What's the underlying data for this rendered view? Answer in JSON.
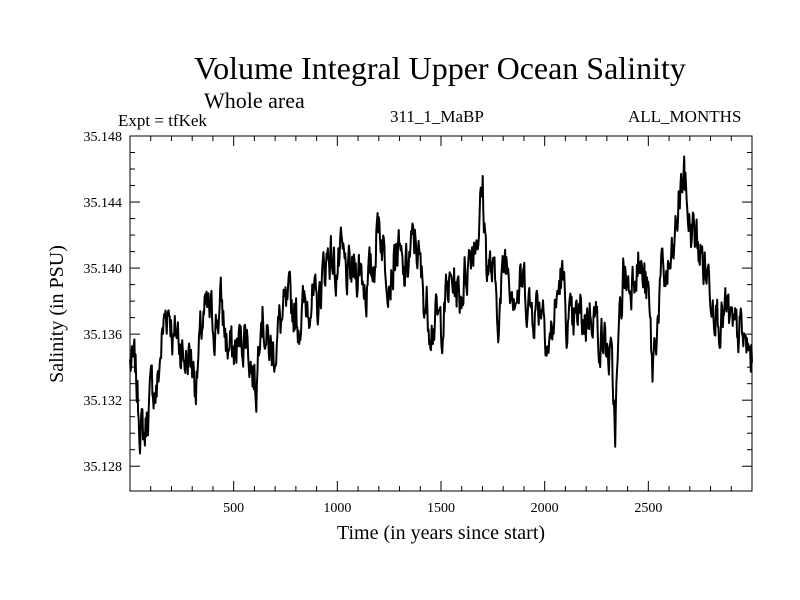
{
  "chart_data": {
    "type": "line",
    "title": "Volume Integral Upper Ocean Salinity",
    "subtitle": "Whole area",
    "annotations": {
      "experiment": "Expt = tfKek",
      "run": "311_1_MaBP",
      "months": "ALL_MONTHS"
    },
    "xlabel": "Time (in years since start)",
    "ylabel": "Salinity (in PSU)",
    "xlim": [
      0,
      3000
    ],
    "ylim": [
      35.1265,
      35.148
    ],
    "xticks": [
      500,
      1000,
      1500,
      2000,
      2500
    ],
    "yticks": [
      35.128,
      35.132,
      35.136,
      35.14,
      35.144,
      35.148
    ],
    "ytick_labels": [
      "35.128",
      "35.132",
      "35.136",
      "35.140",
      "35.144",
      "35.148"
    ],
    "grid": false,
    "line_color": "#000000",
    "series": [
      {
        "x": [
          0,
          25,
          50,
          70,
          90,
          110,
          130,
          150,
          170,
          190,
          210,
          230,
          260,
          290,
          320,
          350,
          380,
          410,
          440,
          470,
          500,
          530,
          560,
          590,
          610,
          630,
          660,
          690,
          720,
          750,
          780,
          810,
          840,
          870,
          900,
          930,
          960,
          990,
          1020,
          1050,
          1080,
          1110,
          1140,
          1170,
          1200,
          1230,
          1260,
          1290,
          1320,
          1350,
          1380,
          1410,
          1440,
          1470,
          1500,
          1530,
          1560,
          1590,
          1620,
          1650,
          1680,
          1700,
          1720,
          1750,
          1780,
          1810,
          1840,
          1870,
          1900,
          1930,
          1960,
          1990,
          2020,
          2050,
          2080,
          2110,
          2140,
          2170,
          2200,
          2230,
          2260,
          2290,
          2320,
          2340,
          2360,
          2380,
          2410,
          2440,
          2470,
          2500,
          2520,
          2540,
          2560,
          2590,
          2620,
          2650,
          2670,
          2700,
          2730,
          2760,
          2790,
          2820,
          2850,
          2880,
          2910,
          2940,
          2970,
          3000
        ],
        "y": [
          35.1342,
          35.1338,
          35.1305,
          35.1298,
          35.1318,
          35.1328,
          35.1325,
          35.1352,
          35.1372,
          35.1378,
          35.1355,
          35.1362,
          35.1345,
          35.1348,
          35.1332,
          35.1368,
          35.1372,
          35.1365,
          35.1378,
          35.1352,
          35.1348,
          35.1355,
          35.1362,
          35.1338,
          35.1328,
          35.1382,
          35.1355,
          35.1348,
          35.1365,
          35.1372,
          35.1378,
          35.1368,
          35.1375,
          35.1385,
          35.1372,
          35.1395,
          35.1412,
          35.1398,
          35.1405,
          35.1392,
          35.1398,
          35.1402,
          35.1388,
          35.1398,
          35.1432,
          35.1405,
          35.1398,
          35.1412,
          35.1392,
          35.1408,
          35.1418,
          35.1388,
          35.1372,
          35.1368,
          35.1365,
          35.1385,
          35.1392,
          35.1382,
          35.1398,
          35.1415,
          35.1425,
          35.1448,
          35.1405,
          35.1395,
          35.1372,
          35.1408,
          35.1395,
          35.1385,
          35.1392,
          35.1375,
          35.1378,
          35.1382,
          35.1352,
          35.1372,
          35.1398,
          35.1365,
          35.1362,
          35.1372,
          35.1368,
          35.1378,
          35.1362,
          35.1355,
          35.1342,
          35.1305,
          35.1362,
          35.1398,
          35.1388,
          35.1408,
          35.1395,
          35.1382,
          35.1338,
          35.1365,
          35.1392,
          35.1395,
          35.1405,
          35.1442,
          35.1458,
          35.1425,
          35.1418,
          35.1405,
          35.1395,
          35.1382,
          35.1368,
          35.1372,
          35.1358,
          35.1362,
          35.1352,
          35.1345
        ]
      }
    ]
  }
}
